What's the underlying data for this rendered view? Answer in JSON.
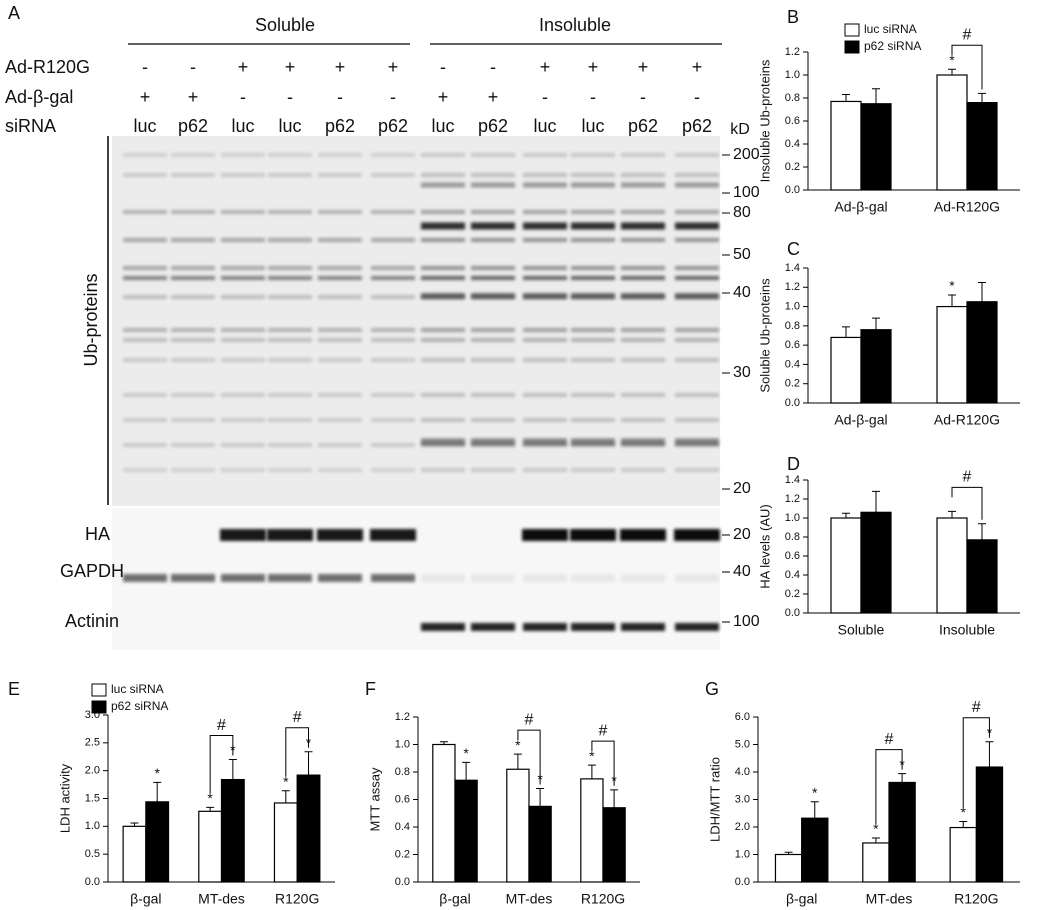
{
  "blot": {
    "label": "A",
    "groups": [
      "Soluble",
      "Insoluble"
    ],
    "rows": [
      {
        "label": "Ad-R120G",
        "values": [
          "-",
          "-",
          "+",
          "+",
          "+",
          "+",
          "-",
          "-",
          "+",
          "+",
          "+",
          "+"
        ]
      },
      {
        "label": "Ad-β-gal",
        "values": [
          "+",
          "+",
          "-",
          "-",
          "-",
          "-",
          "+",
          "+",
          "-",
          "-",
          "-",
          "-"
        ]
      },
      {
        "label": "siRNA",
        "values": [
          "luc",
          "p62",
          "luc",
          "luc",
          "p62",
          "p62",
          "luc",
          "p62",
          "luc",
          "luc",
          "p62",
          "p62"
        ]
      }
    ],
    "unit": "kD",
    "ub_label": "Ub-proteins",
    "ub_markers": [
      "200",
      "100",
      "80",
      "50",
      "40",
      "30",
      "20"
    ],
    "strips": [
      {
        "label": "HA",
        "marker": "20"
      },
      {
        "label": "GAPDH",
        "marker": "40"
      },
      {
        "label": "Actinin",
        "marker": "100"
      }
    ]
  },
  "chart_data": [
    {
      "type": "bar",
      "label": "B",
      "y_label": "Insoluble Ub-proteins",
      "categories": [
        "Ad-β-gal",
        "Ad-R120G"
      ],
      "series": [
        {
          "name": "luc siRNA",
          "color": "#ffffff",
          "values": [
            0.77,
            1.0
          ],
          "errors": [
            0.06,
            0.05
          ],
          "annotations": [
            null,
            "*"
          ]
        },
        {
          "name": "p62 siRNA",
          "color": "#000000",
          "values": [
            0.75,
            0.76
          ],
          "errors": [
            0.13,
            0.08
          ],
          "annotations": [
            null,
            null
          ]
        }
      ],
      "bracket_labels": [
        null,
        "#"
      ],
      "ylim": [
        0,
        1.2
      ],
      "yticks": [
        {
          "value": 0,
          "label": "0.0"
        },
        0.2,
        0.4,
        0.6,
        0.8,
        {
          "value": 1,
          "label": "1.0"
        },
        1.2
      ]
    },
    {
      "type": "bar",
      "label": "C",
      "y_label": "Soluble Ub-proteins",
      "categories": [
        "Ad-β-gal",
        "Ad-R120G"
      ],
      "series": [
        {
          "color": "#ffffff",
          "values": [
            0.68,
            1.0
          ],
          "errors": [
            0.11,
            0.12
          ],
          "annotations": [
            null,
            "*"
          ]
        },
        {
          "color": "#000000",
          "values": [
            0.76,
            1.05
          ],
          "errors": [
            0.12,
            0.2
          ],
          "annotations": [
            null,
            null
          ]
        }
      ],
      "ylim": [
        0,
        1.4
      ],
      "yticks": [
        {
          "value": 0,
          "label": "0.0"
        },
        0.2,
        0.4,
        0.6,
        0.8,
        {
          "value": 1,
          "label": "1.0"
        },
        1.2,
        1.4
      ]
    },
    {
      "type": "bar",
      "label": "D",
      "y_label": "HA levels (AU)",
      "categories": [
        "Soluble",
        "Insoluble"
      ],
      "series": [
        {
          "color": "#ffffff",
          "values": [
            1.0,
            1.0
          ],
          "errors": [
            0.05,
            0.07
          ],
          "annotations": [
            null,
            null
          ]
        },
        {
          "color": "#000000",
          "values": [
            1.06,
            0.77
          ],
          "errors": [
            0.22,
            0.17
          ],
          "annotations": [
            null,
            null
          ]
        }
      ],
      "bracket_labels": [
        null,
        "#"
      ],
      "ylim": [
        0,
        1.4
      ],
      "yticks": [
        {
          "value": 0,
          "label": "0.0"
        },
        0.2,
        0.4,
        0.6,
        0.8,
        {
          "value": 1,
          "label": "1.0"
        },
        1.2,
        1.4
      ]
    },
    {
      "type": "bar",
      "label": "E",
      "y_label": "LDH activity",
      "categories": [
        "β-gal",
        "MT-des",
        "R120G"
      ],
      "series": [
        {
          "name": "luc siRNA",
          "color": "#ffffff",
          "values": [
            1.0,
            1.27,
            1.42
          ],
          "errors": [
            0.06,
            0.07,
            0.22
          ],
          "annotations": [
            null,
            "*",
            "*"
          ]
        },
        {
          "name": "p62 siRNA",
          "color": "#000000",
          "values": [
            1.44,
            1.84,
            1.92
          ],
          "errors": [
            0.35,
            0.36,
            0.42
          ],
          "annotations": [
            "*",
            "*",
            "*"
          ]
        }
      ],
      "bracket_labels": [
        null,
        "#",
        "#"
      ],
      "ylim": [
        0,
        3
      ],
      "yticks": [
        {
          "value": 0,
          "label": "0.0"
        },
        0.5,
        {
          "value": 1,
          "label": "1.0"
        },
        1.5,
        {
          "value": 2,
          "label": "2.0"
        },
        2.5,
        {
          "value": 3,
          "label": "3.0"
        }
      ]
    },
    {
      "type": "bar",
      "label": "F",
      "y_label": "MTT assay",
      "categories": [
        "β-gal",
        "MT-des",
        "R120G"
      ],
      "series": [
        {
          "color": "#ffffff",
          "values": [
            1.0,
            0.82,
            0.75
          ],
          "errors": [
            0.02,
            0.11,
            0.1
          ],
          "annotations": [
            null,
            "*",
            "*"
          ]
        },
        {
          "color": "#000000",
          "values": [
            0.74,
            0.55,
            0.54
          ],
          "errors": [
            0.13,
            0.13,
            0.13
          ],
          "annotations": [
            "*",
            "*",
            "*"
          ]
        }
      ],
      "bracket_labels": [
        null,
        "#",
        "#"
      ],
      "ylim": [
        0,
        1.2
      ],
      "yticks": [
        {
          "value": 0,
          "label": "0.0"
        },
        0.2,
        0.4,
        0.6,
        0.8,
        {
          "value": 1,
          "label": "1.0"
        },
        1.2
      ]
    },
    {
      "type": "bar",
      "label": "G",
      "y_label": "LDH/MTT ratio",
      "categories": [
        "β-gal",
        "MT-des",
        "R120G"
      ],
      "series": [
        {
          "color": "#ffffff",
          "values": [
            1.0,
            1.42,
            1.98
          ],
          "errors": [
            0.08,
            0.18,
            0.22
          ],
          "annotations": [
            null,
            "*",
            "*"
          ]
        },
        {
          "color": "#000000",
          "values": [
            2.32,
            3.62,
            4.18
          ],
          "errors": [
            0.6,
            0.32,
            0.92
          ],
          "annotations": [
            "*",
            "*",
            "*"
          ]
        }
      ],
      "bracket_labels": [
        null,
        "#",
        "#"
      ],
      "ylim": [
        0,
        6
      ],
      "yticks": [
        {
          "value": 0,
          "label": "0.0"
        },
        {
          "value": 1,
          "label": "1.0"
        },
        {
          "value": 2,
          "label": "2.0"
        },
        {
          "value": 3,
          "label": "3.0"
        },
        {
          "value": 4,
          "label": "4.0"
        },
        {
          "value": 5,
          "label": "5.0"
        },
        {
          "value": 6,
          "label": "6.0"
        }
      ]
    }
  ]
}
